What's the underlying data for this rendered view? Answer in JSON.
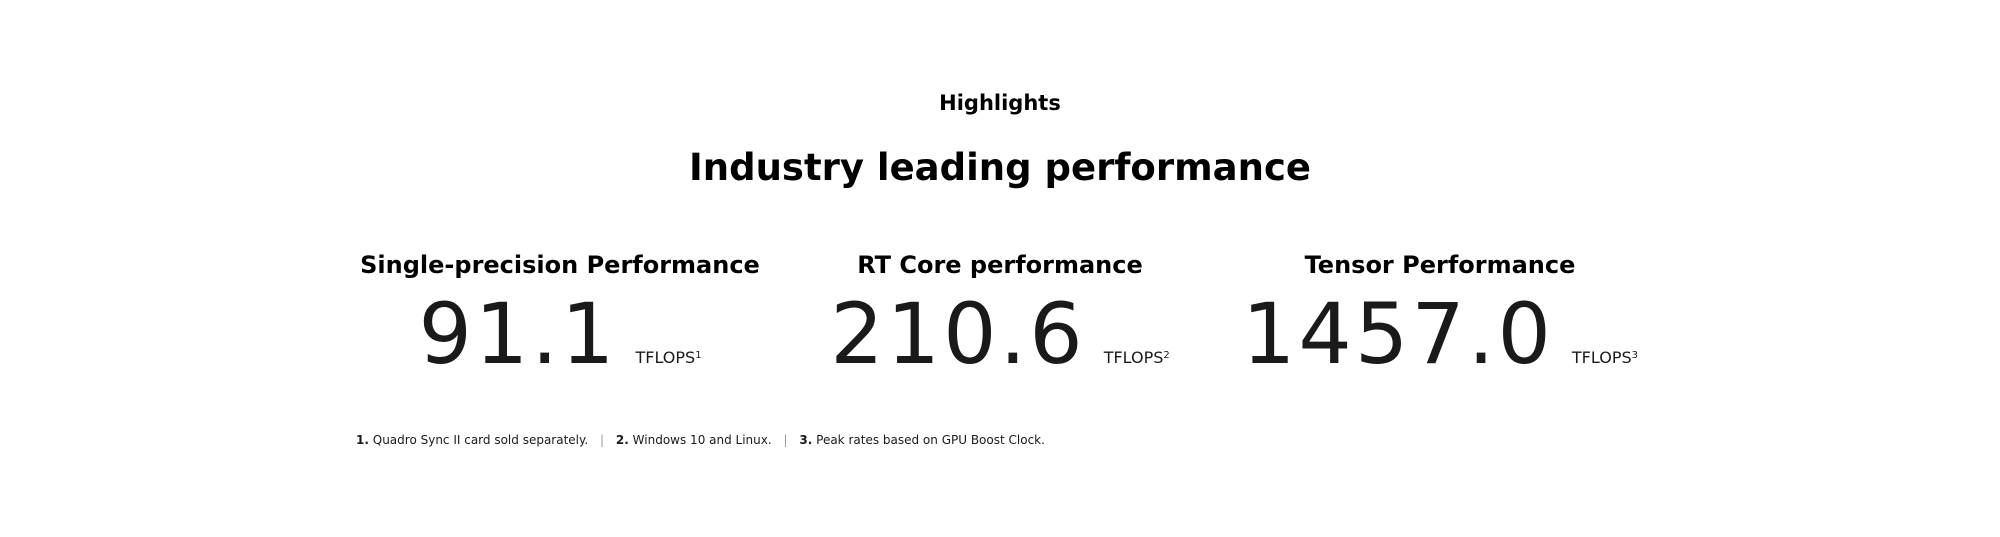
{
  "section": {
    "eyebrow": "Highlights",
    "headline": "Industry leading performance"
  },
  "stats": [
    {
      "title": "Single-precision Performance",
      "value": "91.1",
      "unit": "TFLOPS",
      "note": "1"
    },
    {
      "title": "RT Core performance",
      "value": "210.6",
      "unit": "TFLOPS",
      "note": "2"
    },
    {
      "title": "Tensor Performance",
      "value": "1457.0",
      "unit": "TFLOPS",
      "note": "3"
    }
  ],
  "footnotes": [
    {
      "num": "1.",
      "text": "Quadro Sync II card sold separately."
    },
    {
      "num": "2.",
      "text": "Windows 10 and Linux."
    },
    {
      "num": "3.",
      "text": "Peak rates based on GPU Boost Clock."
    }
  ],
  "separator": "|"
}
